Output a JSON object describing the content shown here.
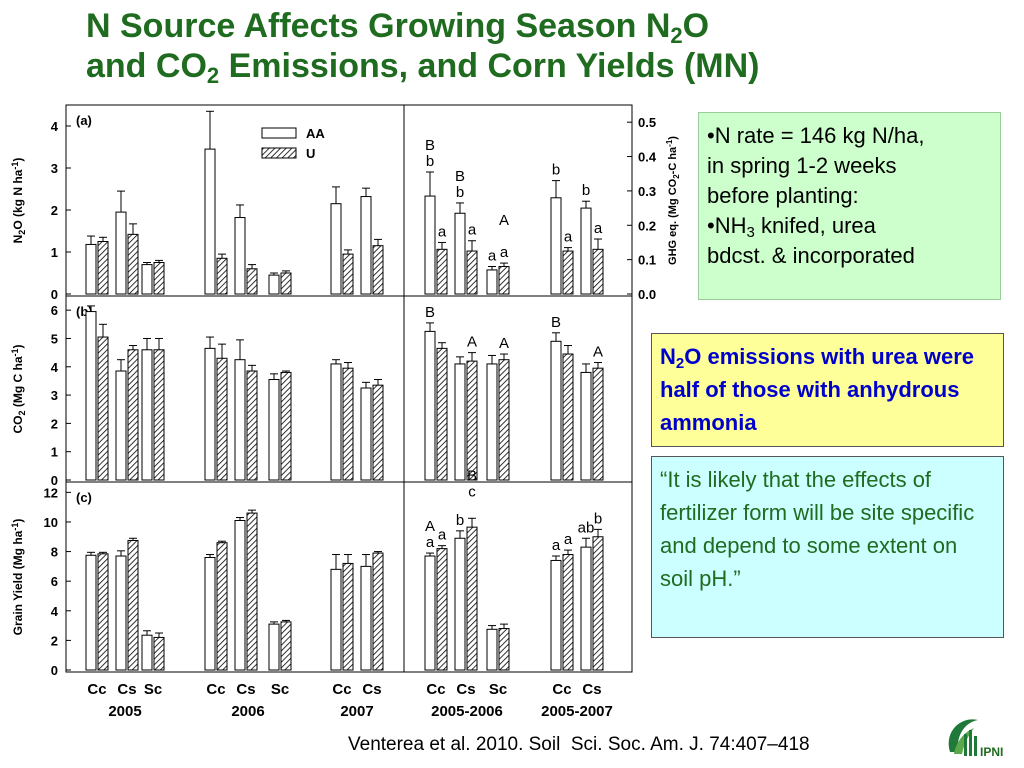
{
  "slide": {
    "title": {
      "line1_pre": "N Source Affects Growing Season N",
      "line1_sub": "2",
      "line1_post": "O",
      "line2_pre": "and CO",
      "line2_sub": "2",
      "line2_post": " Emissions, and Corn Yields (MN)"
    },
    "info_box": {
      "line1": "•N rate = 146 kg N/ha,",
      "line2": "in spring 1-2 weeks",
      "line3": "before planting:",
      "line4_pre": "•NH",
      "line4_sub": "3",
      "line4_post": " knifed, urea",
      "line5": "bdcst. & incorporated"
    },
    "highlight_box": {
      "pre": "N",
      "sub": "2",
      "post": "O emissions with urea were half of those with anhydrous ammonia"
    },
    "quote_box": {
      "text": "“It is likely that the effects of fertilizer form will be site specific and depend to some extent on soil pH.”"
    },
    "citation": "Venterea et al. 2010. Soil  Sci. Soc. Am. J. 74:407–418",
    "logo_text": "IPNI"
  },
  "chart_data": {
    "type": "bar",
    "legend": [
      "AA",
      "U"
    ],
    "colors": {
      "AA": "#ffffff",
      "U": "hatched",
      "title": "#1f6b1f",
      "highlight_text": "#0000cc"
    },
    "categories": [
      "Cc",
      "Cs",
      "Sc",
      "Cc",
      "Cs",
      "Sc",
      "Cc",
      "Cs",
      "Cc",
      "Cs",
      "Sc",
      "Cc",
      "Cs"
    ],
    "groups": [
      {
        "label": "2005",
        "count": 3
      },
      {
        "label": "2006",
        "count": 3
      },
      {
        "label": "2007",
        "count": 2
      },
      {
        "label": "2005-2006",
        "count": 3
      },
      {
        "label": "2005-2007",
        "count": 2
      }
    ],
    "panels": [
      {
        "label": "(a)",
        "ylabel_pre": "N",
        "ylabel_sub": "2",
        "ylabel_post": "O (kg N ha",
        "ylabel_sup": "-1",
        "ylabel_end": ")",
        "ylim": [
          0,
          4.5
        ],
        "yticks": [
          0,
          1,
          2,
          3,
          4
        ],
        "right_axis": {
          "label_pre": "GHG eq. (Mg CO",
          "label_sub": "2",
          "label_post": "-C ha",
          "label_sup": "-1",
          "label_end": ")",
          "ylim": [
            0,
            0.55
          ],
          "ticks": [
            0.0,
            0.1,
            0.2,
            0.3,
            0.4,
            0.5
          ],
          "tick_labels": [
            "0.0",
            "0.1",
            "0.2",
            "0.3",
            "0.4",
            "0.5"
          ]
        },
        "series": [
          {
            "name": "AA",
            "values": [
              1.18,
              1.95,
              0.7,
              3.45,
              1.82,
              0.45,
              2.15,
              2.32,
              0.285,
              0.235,
              0.07,
              0.28,
              0.25
            ],
            "errors": [
              0.2,
              0.5,
              0.05,
              0.9,
              0.3,
              0.05,
              0.4,
              0.2,
              0.07,
              0.03,
              0.01,
              0.05,
              0.02
            ],
            "scale": [
              "L",
              "L",
              "L",
              "L",
              "L",
              "L",
              "L",
              "L",
              "R",
              "R",
              "R",
              "R",
              "R"
            ]
          },
          {
            "name": "U",
            "values": [
              1.25,
              1.42,
              0.75,
              0.85,
              0.6,
              0.5,
              0.95,
              1.15,
              0.13,
              0.125,
              0.08,
              0.125,
              0.13
            ],
            "errors": [
              0.1,
              0.25,
              0.05,
              0.1,
              0.1,
              0.05,
              0.1,
              0.15,
              0.02,
              0.03,
              0.01,
              0.01,
              0.03
            ],
            "scale": [
              "L",
              "L",
              "L",
              "L",
              "L",
              "L",
              "L",
              "L",
              "R",
              "R",
              "R",
              "R",
              "R"
            ]
          }
        ],
        "letters": [
          {
            "idx": 8,
            "series": "AA",
            "text": "B",
            "row": 2
          },
          {
            "idx": 8,
            "series": "AA",
            "text": "b",
            "row": 1
          },
          {
            "idx": 8,
            "series": "U",
            "text": "a",
            "row": 1
          },
          {
            "idx": 9,
            "series": "AA",
            "text": "B",
            "row": 2
          },
          {
            "idx": 9,
            "series": "AA",
            "text": "b",
            "row": 1
          },
          {
            "idx": 9,
            "series": "U",
            "text": "a",
            "row": 1
          },
          {
            "idx": 10,
            "series": "U",
            "text": "A",
            "row": 3
          },
          {
            "idx": 10,
            "series": "AA",
            "text": "a",
            "row": 1
          },
          {
            "idx": 10,
            "series": "U",
            "text": "a",
            "row": 1
          },
          {
            "idx": 11,
            "series": "AA",
            "text": "b",
            "row": 1
          },
          {
            "idx": 11,
            "series": "U",
            "text": "a",
            "row": 1
          },
          {
            "idx": 12,
            "series": "AA",
            "text": "b",
            "row": 1
          },
          {
            "idx": 12,
            "series": "U",
            "text": "a",
            "row": 1
          }
        ]
      },
      {
        "label": "(b)",
        "ylabel_pre": "CO",
        "ylabel_sub": "2",
        "ylabel_post": " (Mg C ha",
        "ylabel_sup": "-1",
        "ylabel_end": ")",
        "ylim": [
          0,
          6.5
        ],
        "yticks": [
          0,
          1,
          2,
          3,
          4,
          5,
          6
        ],
        "series": [
          {
            "name": "AA",
            "values": [
              5.95,
              3.85,
              4.6,
              4.65,
              4.25,
              3.55,
              4.1,
              3.25,
              5.25,
              4.1,
              4.1,
              4.9,
              3.8
            ],
            "errors": [
              0.2,
              0.4,
              0.4,
              0.4,
              0.7,
              0.2,
              0.15,
              0.2,
              0.3,
              0.25,
              0.3,
              0.3,
              0.3
            ]
          },
          {
            "name": "U",
            "values": [
              5.05,
              4.6,
              4.6,
              4.3,
              3.85,
              3.8,
              3.95,
              3.35,
              4.65,
              4.2,
              4.25,
              4.45,
              3.95
            ],
            "errors": [
              0.45,
              0.15,
              0.4,
              0.5,
              0.2,
              0.05,
              0.2,
              0.2,
              0.2,
              0.3,
              0.2,
              0.3,
              0.2
            ]
          }
        ],
        "letters": [
          {
            "idx": 8,
            "series": "AA",
            "text": "B",
            "row": 1
          },
          {
            "idx": 9,
            "series": "U",
            "text": "A",
            "row": 1
          },
          {
            "idx": 10,
            "series": "U",
            "text": "A",
            "row": 1
          },
          {
            "idx": 11,
            "series": "AA",
            "text": "B",
            "row": 1
          },
          {
            "idx": 12,
            "series": "U",
            "text": "A",
            "row": 1
          }
        ]
      },
      {
        "label": "(c)",
        "ylabel": "Grain Yield (Mg ha",
        "ylabel_sup": "-1",
        "ylabel_end": ")",
        "ylim": [
          0,
          12.7
        ],
        "yticks": [
          0,
          2,
          4,
          6,
          8,
          10,
          12
        ],
        "series": [
          {
            "name": "AA",
            "values": [
              7.75,
              7.7,
              2.35,
              7.6,
              10.1,
              3.1,
              6.8,
              7.0,
              7.7,
              8.9,
              2.75,
              7.4,
              8.3
            ],
            "errors": [
              0.2,
              0.35,
              0.3,
              0.2,
              0.2,
              0.15,
              1.0,
              0.8,
              0.2,
              0.5,
              0.25,
              0.3,
              0.6
            ]
          },
          {
            "name": "U",
            "values": [
              7.85,
              8.75,
              2.2,
              8.6,
              10.6,
              3.25,
              7.2,
              7.9,
              8.2,
              9.65,
              2.8,
              7.8,
              9.0
            ],
            "errors": [
              0.1,
              0.15,
              0.3,
              0.1,
              0.2,
              0.1,
              0.6,
              0.1,
              0.2,
              0.6,
              0.3,
              0.3,
              0.5
            ]
          }
        ],
        "letters": [
          {
            "idx": 8,
            "series": "AA",
            "text": "A",
            "row": 2
          },
          {
            "idx": 8,
            "series": "AA",
            "text": "a",
            "row": 1
          },
          {
            "idx": 8,
            "series": "U",
            "text": "a",
            "row": 1
          },
          {
            "idx": 9,
            "series": "U",
            "text": "B",
            "row": 3
          },
          {
            "idx": 9,
            "series": "U",
            "text": "c",
            "row": 2
          },
          {
            "idx": 9,
            "series": "AA",
            "text": "b",
            "row": 1
          },
          {
            "idx": 11,
            "series": "AA",
            "text": "a",
            "row": 1
          },
          {
            "idx": 11,
            "series": "U",
            "text": "a",
            "row": 1
          },
          {
            "idx": 12,
            "series": "AA",
            "text": "ab",
            "row": 1
          },
          {
            "idx": 12,
            "series": "U",
            "text": "b",
            "row": 1
          }
        ]
      }
    ]
  }
}
